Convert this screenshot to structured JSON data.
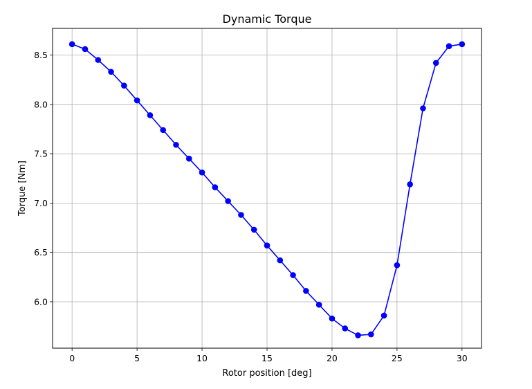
{
  "chart_data": {
    "type": "line",
    "title": "Dynamic Torque",
    "xlabel": "Rotor position [deg]",
    "ylabel": "Torque [Nm]",
    "xlim": [
      -1.5,
      31.5
    ],
    "ylim": [
      5.53,
      8.77
    ],
    "xticks": [
      0,
      5,
      10,
      15,
      20,
      25,
      30
    ],
    "yticks": [
      6.0,
      6.5,
      7.0,
      7.5,
      8.0,
      8.5
    ],
    "xtick_labels": [
      "0",
      "5",
      "10",
      "15",
      "20",
      "25",
      "30"
    ],
    "ytick_labels": [
      "6.0",
      "6.5",
      "7.0",
      "7.5",
      "8.0",
      "8.5"
    ],
    "grid": true,
    "series": [
      {
        "color": "#0000ff",
        "marker": "circle",
        "x": [
          0,
          1,
          2,
          3,
          4,
          5,
          6,
          7,
          8,
          9,
          10,
          11,
          12,
          13,
          14,
          15,
          16,
          17,
          18,
          19,
          20,
          21,
          22,
          23,
          24,
          25,
          26,
          27,
          28,
          29,
          30
        ],
        "values": [
          8.61,
          8.56,
          8.45,
          8.33,
          8.19,
          8.04,
          7.89,
          7.74,
          7.59,
          7.45,
          7.31,
          7.16,
          7.02,
          6.88,
          6.73,
          6.57,
          6.42,
          6.27,
          6.11,
          5.97,
          5.83,
          5.73,
          5.66,
          5.67,
          5.86,
          6.37,
          7.19,
          7.96,
          8.42,
          8.59,
          8.61
        ]
      }
    ]
  }
}
